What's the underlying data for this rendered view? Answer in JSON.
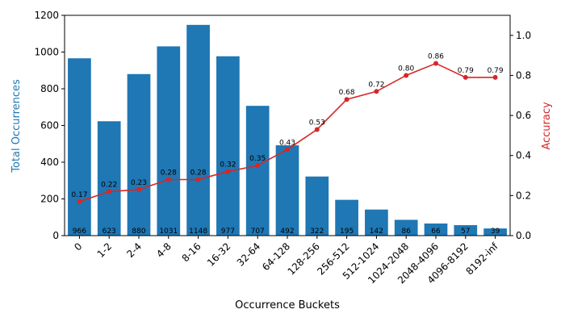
{
  "chart_data": {
    "type": "bar",
    "xlabel": "Occurrence Buckets",
    "ylabel_left": "Total Occurrences",
    "ylabel_right": "Accuracy",
    "categories": [
      "0",
      "1-2",
      "2-4",
      "4-8",
      "8-16",
      "16-32",
      "32-64",
      "64-128",
      "128-256",
      "256-512",
      "512-1024",
      "1024-2048",
      "2048-4096",
      "4096-8192",
      "8192-inf"
    ],
    "series": [
      {
        "axis": "left",
        "type": "bar",
        "color": "#1f77b4",
        "values": [
          966,
          623,
          880,
          1031,
          1148,
          977,
          707,
          492,
          322,
          195,
          142,
          86,
          66,
          57,
          39
        ],
        "labels": [
          "966",
          "623",
          "880",
          "1031",
          "1148",
          "977",
          "707",
          "492",
          "322",
          "195",
          "142",
          "86",
          "66",
          "57",
          "39"
        ]
      },
      {
        "axis": "right",
        "type": "line",
        "color": "#d62728",
        "values": [
          0.17,
          0.22,
          0.23,
          0.28,
          0.28,
          0.32,
          0.35,
          0.43,
          0.53,
          0.68,
          0.72,
          0.8,
          0.86,
          0.79,
          0.79
        ],
        "labels": [
          "0.17",
          "0.22",
          "0.23",
          "0.28",
          "0.28",
          "0.32",
          "0.35",
          "0.43",
          "0.53",
          "0.68",
          "0.72",
          "0.80",
          "0.86",
          "0.79",
          "0.79"
        ]
      }
    ],
    "ylim_left": [
      0,
      1200
    ],
    "yticks_left": [
      "0",
      "200",
      "400",
      "600",
      "800",
      "1000",
      "1200"
    ],
    "ylim_right": [
      0,
      1.1
    ],
    "yticks_right": [
      "0.0",
      "0.2",
      "0.4",
      "0.6",
      "0.8",
      "1.0"
    ],
    "grid": false
  }
}
